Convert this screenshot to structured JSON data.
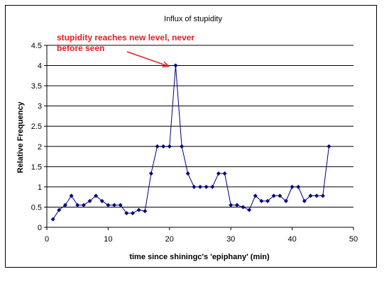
{
  "chart_data": {
    "type": "line",
    "title": "Influx of stupidity",
    "xlabel": "time since shiningc's 'epiphany' (min)",
    "ylabel": "Relative Frequency",
    "xlim": [
      0,
      50
    ],
    "ylim": [
      0,
      4.5
    ],
    "xticks": [
      "0",
      "10",
      "20",
      "30",
      "40",
      "50"
    ],
    "yticks": [
      "0",
      "0.5",
      "1",
      "1.5",
      "2",
      "2.5",
      "3",
      "3.5",
      "4",
      "4.5"
    ],
    "grid": "horizontal",
    "series": [
      {
        "marker": "diamond",
        "color": "#000080",
        "points": [
          [
            1,
            0.2
          ],
          [
            2,
            0.43
          ],
          [
            3,
            0.55
          ],
          [
            4,
            0.78
          ],
          [
            5,
            0.55
          ],
          [
            6,
            0.55
          ],
          [
            7,
            0.65
          ],
          [
            8,
            0.78
          ],
          [
            9,
            0.65
          ],
          [
            10,
            0.55
          ],
          [
            11,
            0.55
          ],
          [
            12,
            0.55
          ],
          [
            13,
            0.35
          ],
          [
            14,
            0.35
          ],
          [
            15,
            0.43
          ],
          [
            16,
            0.4
          ],
          [
            17,
            1.33
          ],
          [
            18,
            2.0
          ],
          [
            19,
            2.0
          ],
          [
            20,
            2.0
          ],
          [
            21,
            4.0
          ],
          [
            22,
            2.0
          ],
          [
            23,
            1.33
          ],
          [
            24,
            1.0
          ],
          [
            25,
            1.0
          ],
          [
            26,
            1.0
          ],
          [
            27,
            1.0
          ],
          [
            28,
            1.33
          ],
          [
            29,
            1.33
          ],
          [
            30,
            0.55
          ],
          [
            31,
            0.55
          ],
          [
            32,
            0.5
          ],
          [
            33,
            0.43
          ],
          [
            34,
            0.78
          ],
          [
            35,
            0.65
          ],
          [
            36,
            0.65
          ],
          [
            37,
            0.78
          ],
          [
            38,
            0.78
          ],
          [
            39,
            0.65
          ],
          [
            40,
            1.0
          ],
          [
            41,
            1.0
          ],
          [
            42,
            0.65
          ],
          [
            43,
            0.78
          ],
          [
            44,
            0.78
          ],
          [
            45,
            0.78
          ],
          [
            46,
            2.0
          ]
        ]
      }
    ],
    "annotations": [
      {
        "lines": [
          "stupidity reaches new level, never",
          "before seen"
        ],
        "color": "#e81c1c",
        "points_to": [
          21,
          4.0
        ]
      }
    ]
  }
}
